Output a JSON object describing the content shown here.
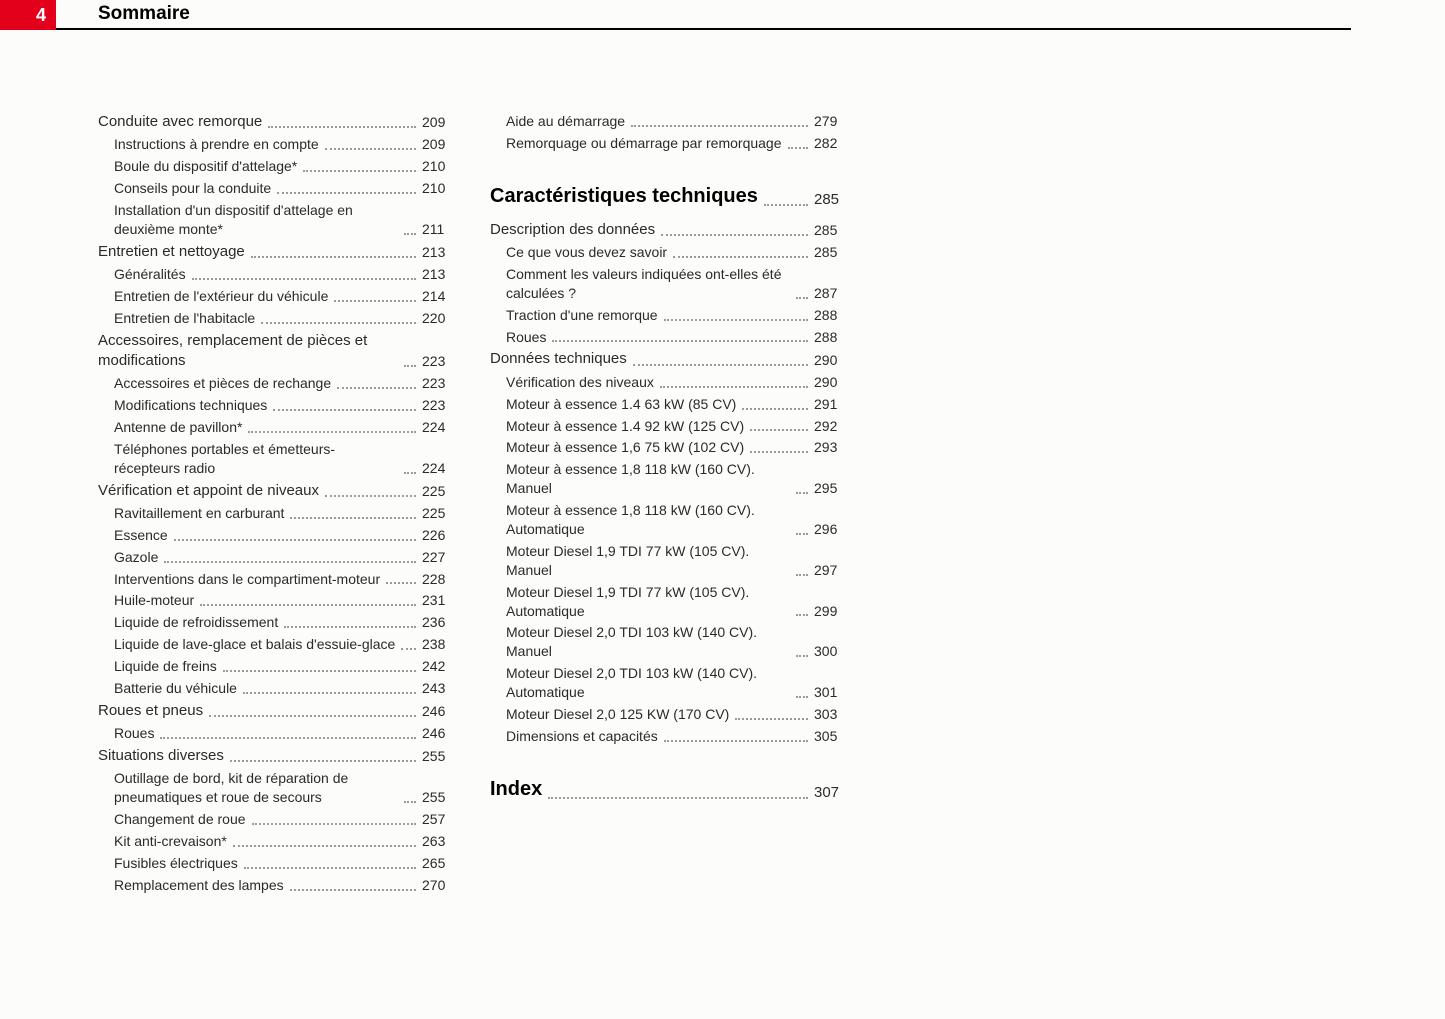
{
  "header": {
    "page_number": "4",
    "title": "Sommaire"
  },
  "columns": [
    [
      {
        "level": "section",
        "text": "Conduite avec remorque",
        "page": "209"
      },
      {
        "level": "sub",
        "text": "Instructions à prendre en compte",
        "page": "209"
      },
      {
        "level": "sub",
        "text": "Boule du dispositif d'attelage*",
        "page": "210"
      },
      {
        "level": "sub",
        "text": "Conseils pour la conduite",
        "page": "210"
      },
      {
        "level": "sub",
        "text": "Installation d'un dispositif d'attelage en deuxième monte*",
        "page": "211"
      },
      {
        "level": "section",
        "text": "Entretien et nettoyage",
        "page": "213"
      },
      {
        "level": "sub",
        "text": "Généralités",
        "page": "213"
      },
      {
        "level": "sub",
        "text": "Entretien de l'extérieur du véhicule",
        "page": "214"
      },
      {
        "level": "sub",
        "text": "Entretien de l'habitacle",
        "page": "220"
      },
      {
        "level": "section",
        "text": "Accessoires, remplacement de pièces et modifications",
        "page": "223"
      },
      {
        "level": "sub",
        "text": "Accessoires et pièces de rechange",
        "page": "223"
      },
      {
        "level": "sub",
        "text": "Modifications techniques",
        "page": "223"
      },
      {
        "level": "sub",
        "text": "Antenne de pavillon*",
        "page": "224"
      },
      {
        "level": "sub",
        "text": "Téléphones portables et émetteurs-récepteurs radio",
        "page": "224"
      },
      {
        "level": "section",
        "text": "Vérification et appoint de niveaux",
        "page": "225"
      },
      {
        "level": "sub",
        "text": "Ravitaillement en carburant",
        "page": "225"
      },
      {
        "level": "sub",
        "text": "Essence",
        "page": "226"
      },
      {
        "level": "sub",
        "text": "Gazole",
        "page": "227"
      },
      {
        "level": "sub",
        "text": "Interventions dans le compartiment-moteur",
        "page": "228"
      },
      {
        "level": "sub",
        "text": "Huile-moteur",
        "page": "231"
      },
      {
        "level": "sub",
        "text": "Liquide de refroidissement",
        "page": "236"
      },
      {
        "level": "sub",
        "text": "Liquide de lave-glace et balais d'essuie-glace",
        "page": "238"
      },
      {
        "level": "sub",
        "text": "Liquide de freins",
        "page": "242"
      },
      {
        "level": "sub",
        "text": "Batterie du véhicule",
        "page": "243"
      },
      {
        "level": "section",
        "text": "Roues et pneus",
        "page": "246"
      },
      {
        "level": "sub",
        "text": "Roues",
        "page": "246"
      },
      {
        "level": "section",
        "text": "Situations diverses",
        "page": "255"
      },
      {
        "level": "sub",
        "text": "Outillage de bord, kit de réparation de pneumatiques et roue de secours",
        "page": "255"
      },
      {
        "level": "sub",
        "text": "Changement de roue",
        "page": "257"
      },
      {
        "level": "sub",
        "text": "Kit anti-crevaison*",
        "page": "263"
      },
      {
        "level": "sub",
        "text": "Fusibles électriques",
        "page": "265"
      },
      {
        "level": "sub",
        "text": "Remplacement des lampes",
        "page": "270"
      }
    ],
    [
      {
        "level": "sub",
        "text": "Aide au démarrage",
        "page": "279"
      },
      {
        "level": "sub",
        "text": "Remorquage ou démarrage par remorquage",
        "page": "282"
      },
      {
        "level": "chapter",
        "text": "Caractéristiques techniques",
        "page": "285"
      },
      {
        "level": "section",
        "text": "Description des données",
        "page": "285"
      },
      {
        "level": "sub",
        "text": "Ce que vous devez savoir",
        "page": "285"
      },
      {
        "level": "sub",
        "text": "Comment les valeurs indiquées ont-elles été calculées ?",
        "page": "287"
      },
      {
        "level": "sub",
        "text": "Traction d'une remorque",
        "page": "288"
      },
      {
        "level": "sub",
        "text": "Roues",
        "page": "288"
      },
      {
        "level": "section",
        "text": "Données techniques",
        "page": "290"
      },
      {
        "level": "sub",
        "text": "Vérification des niveaux",
        "page": "290"
      },
      {
        "level": "sub",
        "text": "Moteur à essence 1.4 63 kW (85 CV)",
        "page": "291"
      },
      {
        "level": "sub",
        "text": "Moteur à essence 1.4 92 kW (125 CV)",
        "page": "292"
      },
      {
        "level": "sub",
        "text": "Moteur à essence 1,6 75 kW (102 CV)",
        "page": "293"
      },
      {
        "level": "sub",
        "text": "Moteur à essence 1,8 118 kW (160 CV). Manuel",
        "page": "295"
      },
      {
        "level": "sub",
        "text": "Moteur à essence 1,8 118 kW (160 CV). Automatique",
        "page": "296"
      },
      {
        "level": "sub",
        "text": "Moteur Diesel 1,9 TDI 77 kW (105 CV). Manuel",
        "page": "297"
      },
      {
        "level": "sub",
        "text": "Moteur Diesel 1,9 TDI 77 kW (105 CV). Automatique",
        "page": "299"
      },
      {
        "level": "sub",
        "text": "Moteur Diesel 2,0 TDI 103 kW (140 CV). Manuel",
        "page": "300"
      },
      {
        "level": "sub",
        "text": "Moteur Diesel 2,0 TDI 103 kW (140 CV). Automatique",
        "page": "301"
      },
      {
        "level": "sub",
        "text": "Moteur Diesel 2,0 125 KW (170 CV)",
        "page": "303"
      },
      {
        "level": "sub",
        "text": "Dimensions et capacités",
        "page": "305"
      },
      {
        "level": "chapter",
        "text": "Index",
        "page": "307"
      }
    ]
  ]
}
